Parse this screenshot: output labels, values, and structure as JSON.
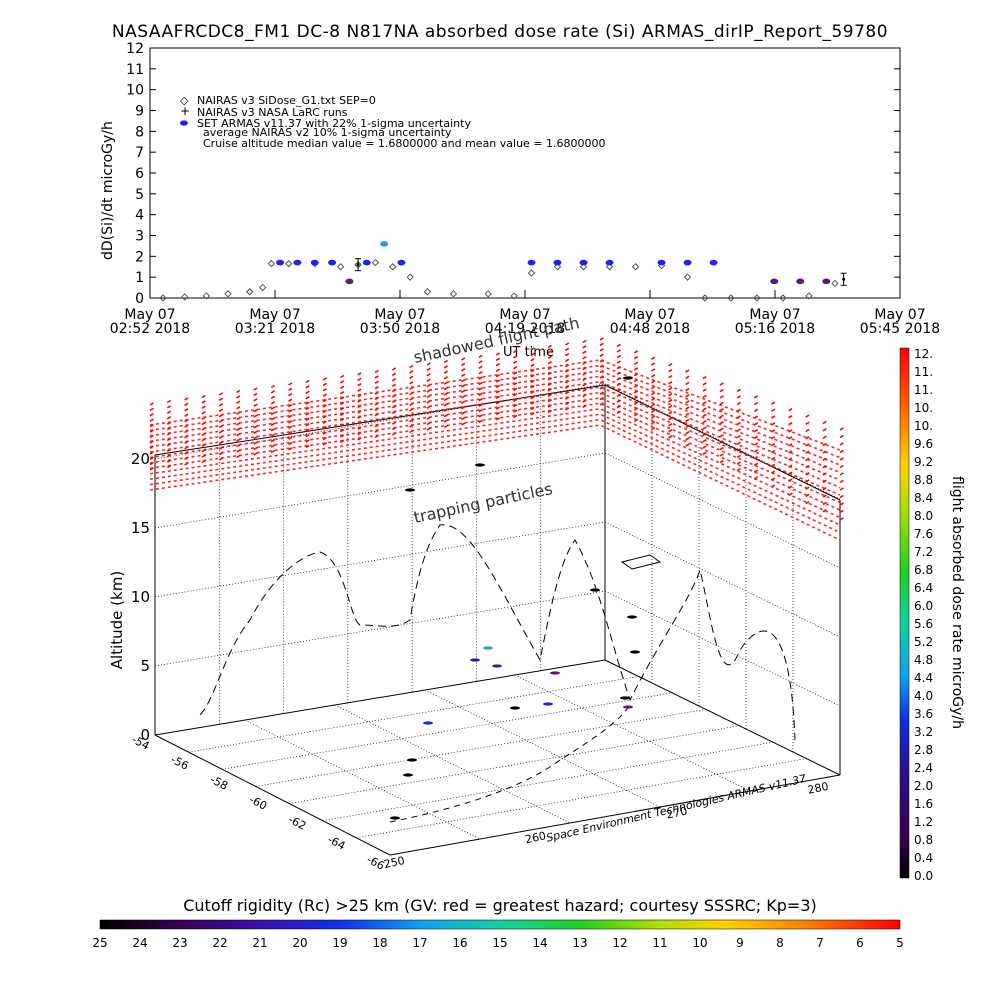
{
  "title": "NASAAFRCDC8_FM1 DC-8   N817NA absorbed dose rate (Si) ARMAS_dirIP_Report_59780",
  "top_chart": {
    "ylabel": "dD(Si)/dt microGy/h",
    "yticks": [
      "0",
      "1",
      "2",
      "3",
      "4",
      "5",
      "6",
      "7",
      "8",
      "9",
      "10",
      "11",
      "12"
    ],
    "xticks": [
      {
        "l1": "May 07",
        "l2": "02:52 2018"
      },
      {
        "l1": "May 07",
        "l2": "03:21 2018"
      },
      {
        "l1": "May 07",
        "l2": "03:50 2018"
      },
      {
        "l1": "May 07",
        "l2": "04:19 2018"
      },
      {
        "l1": "May 07",
        "l2": "04:48 2018"
      },
      {
        "l1": "May 07",
        "l2": "05:16 2018"
      },
      {
        "l1": "May 07",
        "l2": "05:45 2018"
      }
    ],
    "xlabel": "UT time",
    "legend": [
      "NAIRAS v3 SiDose_G1.txt SEP=0",
      "NAIRAS v3 NASA LaRC runs",
      "SET ARMAS v11.37 with 22% 1-sigma uncertainty",
      "average NAIRAS v2 10% 1-sigma uncertainty",
      "Cruise altitude median value = 1.6800000 and mean value = 1.6800000"
    ]
  },
  "three_d": {
    "label_shadowed": "shadowed flight path",
    "label_trapping": "trapping particles",
    "z_label": "Altitude (km)",
    "z_ticks": [
      "0",
      "5",
      "10",
      "15",
      "20"
    ],
    "lat_ticks": [
      "-54",
      "-56",
      "-58",
      "-60",
      "-62",
      "-64",
      "-66"
    ],
    "lon_ticks": [
      "250",
      "260",
      "270",
      "280"
    ]
  },
  "colorbar_right": {
    "title": "flight absorbed dose rate microGy/h",
    "labels": [
      "0.0",
      "0.4",
      "0.8",
      "1.2",
      "1.6",
      "2.0",
      "2.4",
      "2.8",
      "3.2",
      "3.6",
      "4.0",
      "4.4",
      "4.8",
      "5.2",
      "5.6",
      "6.0",
      "6.4",
      "6.8",
      "7.2",
      "7.6",
      "8.0",
      "8.4",
      "8.8",
      "9.2",
      "9.6",
      "10.",
      "10.",
      "11.",
      "11.",
      "12."
    ]
  },
  "credit": "Space Environment Technologies ARMAS v11.37",
  "colorbar_bottom": {
    "title": "Cutoff rigidity (Rc) >25 km (GV: red = greatest hazard; courtesy SSSRC; Kp=3)",
    "labels": [
      "25",
      "24",
      "23",
      "22",
      "21",
      "20",
      "19",
      "18",
      "17",
      "16",
      "15",
      "14",
      "13",
      "12",
      "11",
      "10",
      "9",
      "8",
      "7",
      "6",
      "5"
    ]
  },
  "colors": {
    "nairas": "#555555",
    "armas_blue": "#1f1ff0",
    "armas_purple": "#5a1a7a",
    "armas_cyan": "#1ea0e6",
    "hazard_red": "#ff0000"
  },
  "chart_data": [
    {
      "type": "scatter",
      "title": "NASAAFRCDC8_FM1 DC-8   N817NA absorbed dose rate (Si) ARMAS_dirIP_Report_59780",
      "xlabel": "UT time",
      "ylabel": "dD(Si)/dt microGy/h",
      "xlim": [
        "02:52",
        "05:45"
      ],
      "ylim": [
        0,
        12
      ],
      "series": [
        {
          "name": "NAIRAS v3 SiDose_G1.txt SEP=0",
          "x": [
            "02:55",
            "03:00",
            "03:05",
            "03:10",
            "03:15",
            "03:18",
            "03:20",
            "03:24",
            "03:30",
            "03:36",
            "03:40",
            "03:44",
            "03:48",
            "03:52",
            "03:56",
            "04:02",
            "04:10",
            "04:16",
            "04:20",
            "04:26",
            "04:32",
            "04:38",
            "04:44",
            "04:50",
            "04:56",
            "05:00",
            "05:06",
            "05:12",
            "05:18",
            "05:24",
            "05:30"
          ],
          "y": [
            0.0,
            0.05,
            0.1,
            0.2,
            0.3,
            0.5,
            1.65,
            1.65,
            1.65,
            1.5,
            1.6,
            1.7,
            1.5,
            1.0,
            0.3,
            0.2,
            0.2,
            0.1,
            1.2,
            1.5,
            1.5,
            1.5,
            1.5,
            1.55,
            1.0,
            0.0,
            0.0,
            0.0,
            0.0,
            0.1,
            0.7
          ]
        },
        {
          "name": "SET ARMAS v11.37 with 22% 1-sigma uncertainty",
          "x": [
            "03:22",
            "03:26",
            "03:30",
            "03:34",
            "03:38",
            "03:42",
            "03:46",
            "03:50",
            "04:20",
            "04:26",
            "04:32",
            "04:38",
            "04:50",
            "04:56",
            "05:02",
            "05:16",
            "05:22",
            "05:28"
          ],
          "y": [
            1.7,
            1.7,
            1.7,
            1.7,
            0.8,
            1.7,
            2.6,
            1.7,
            1.7,
            1.7,
            1.7,
            1.7,
            1.7,
            1.7,
            1.7,
            0.8,
            0.8,
            0.8
          ]
        },
        {
          "name": "average NAIRAS v2 10% 1-sigma uncertainty",
          "x": [
            "03:40",
            "05:32"
          ],
          "y": [
            1.6,
            0.9
          ]
        }
      ]
    }
  ]
}
